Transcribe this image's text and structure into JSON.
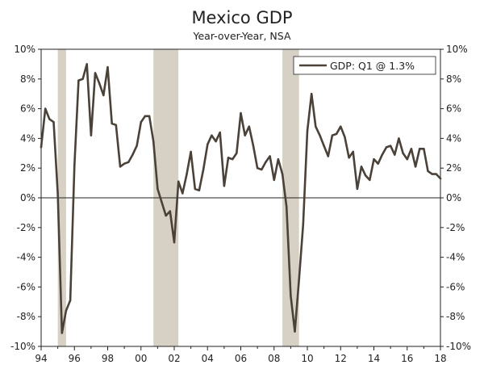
{
  "chart_data": {
    "type": "line",
    "title": "Mexico GDP",
    "subtitle": "Year-over-Year, NSA",
    "x_ticks": [
      "94",
      "96",
      "98",
      "00",
      "02",
      "04",
      "06",
      "08",
      "10",
      "12",
      "14",
      "16",
      "18"
    ],
    "x_range": [
      1994,
      2018
    ],
    "y_ticks": [
      "10%",
      "8%",
      "6%",
      "4%",
      "2%",
      "0%",
      "-2%",
      "-4%",
      "-6%",
      "-8%",
      "-10%"
    ],
    "ylim": [
      -10,
      10
    ],
    "grid": false,
    "legend_position": "top-right",
    "series": [
      {
        "name": "GDP: Q1 @ 1.3%",
        "color": "#4a4139",
        "x": [
          1994.0,
          1994.25,
          1994.5,
          1994.75,
          1995.0,
          1995.25,
          1995.5,
          1995.75,
          1996.0,
          1996.25,
          1996.5,
          1996.75,
          1997.0,
          1997.25,
          1997.5,
          1997.75,
          1998.0,
          1998.25,
          1998.5,
          1998.75,
          1999.0,
          1999.25,
          1999.5,
          1999.75,
          2000.0,
          2000.25,
          2000.5,
          2000.75,
          2001.0,
          2001.25,
          2001.5,
          2001.75,
          2002.0,
          2002.25,
          2002.5,
          2002.75,
          2003.0,
          2003.25,
          2003.5,
          2003.75,
          2004.0,
          2004.25,
          2004.5,
          2004.75,
          2005.0,
          2005.25,
          2005.5,
          2005.75,
          2006.0,
          2006.25,
          2006.5,
          2006.75,
          2007.0,
          2007.25,
          2007.5,
          2007.75,
          2008.0,
          2008.25,
          2008.5,
          2008.75,
          2009.0,
          2009.25,
          2009.5,
          2009.75,
          2010.0,
          2010.25,
          2010.5,
          2010.75,
          2011.0,
          2011.25,
          2011.5,
          2011.75,
          2012.0,
          2012.25,
          2012.5,
          2012.75,
          2013.0,
          2013.25,
          2013.5,
          2013.75,
          2014.0,
          2014.25,
          2014.5,
          2014.75,
          2015.0,
          2015.25,
          2015.5,
          2015.75,
          2016.0,
          2016.25,
          2016.5,
          2016.75,
          2017.0,
          2017.25,
          2017.5,
          2017.75,
          2018.0
        ],
        "values": [
          3.4,
          6.0,
          5.3,
          5.1,
          0.3,
          -9.1,
          -7.6,
          -6.9,
          2.2,
          7.9,
          8.0,
          9.0,
          4.2,
          8.4,
          7.7,
          6.9,
          8.8,
          5.0,
          4.9,
          2.1,
          2.3,
          2.4,
          2.9,
          3.5,
          5.1,
          5.5,
          5.5,
          3.8,
          0.6,
          -0.3,
          -1.2,
          -0.9,
          -3.0,
          1.1,
          0.3,
          1.6,
          3.1,
          0.6,
          0.5,
          1.9,
          3.6,
          4.2,
          3.8,
          4.4,
          0.8,
          2.7,
          2.6,
          3.0,
          5.7,
          4.2,
          4.8,
          3.5,
          2.0,
          1.9,
          2.4,
          2.8,
          1.2,
          2.6,
          1.6,
          -0.6,
          -6.6,
          -9.0,
          -5.5,
          -1.8,
          4.5,
          7.0,
          4.8,
          4.2,
          3.5,
          2.8,
          4.2,
          4.3,
          4.8,
          4.1,
          2.7,
          3.1,
          0.6,
          2.1,
          1.5,
          1.2,
          2.6,
          2.3,
          2.9,
          3.4,
          3.5,
          2.9,
          4.0,
          3.0,
          2.6,
          3.3,
          2.1,
          3.3,
          3.3,
          1.8,
          1.6,
          1.6,
          1.3
        ]
      }
    ],
    "recessions": [
      [
        1995.0,
        1995.5
      ],
      [
        2000.75,
        2002.25
      ],
      [
        2008.5,
        2009.5
      ]
    ],
    "colors": {
      "line": "#4a4139",
      "shade": "#d6d1c4",
      "axis": "#222222"
    }
  }
}
